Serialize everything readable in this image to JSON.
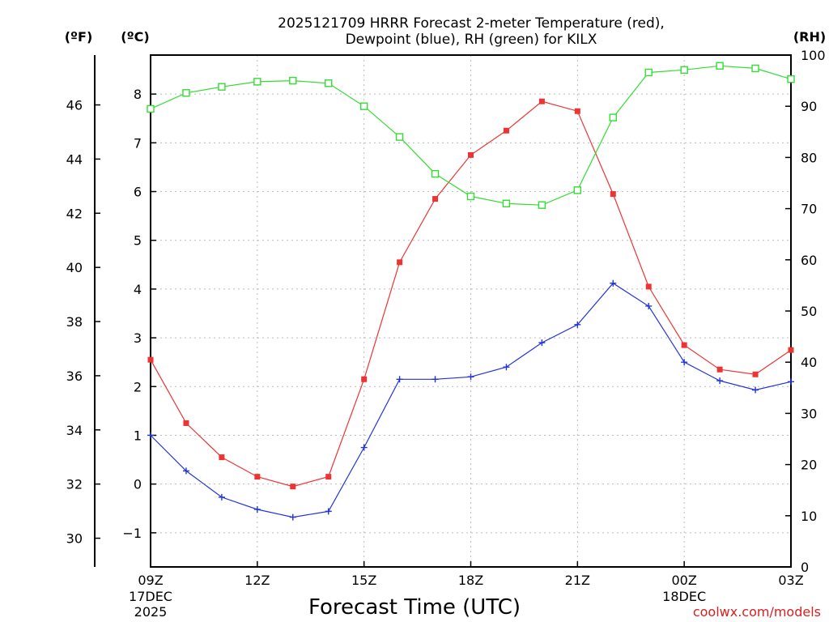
{
  "chart_data": {
    "type": "line",
    "title_line1": "2025121709 HRRR Forecast 2-meter Temperature (red),",
    "title_line2": "Dewpoint (blue), RH (green) for KILX",
    "xlabel": "Forecast Time (UTC)",
    "credit": "coolwx.com/models",
    "left_axis_f": {
      "unit_label": "(ºF)",
      "ticks": [
        30,
        32,
        34,
        36,
        38,
        40,
        42,
        44,
        46
      ]
    },
    "left_axis_c": {
      "unit_label": "(ºC)",
      "range": [
        -1.7,
        8.8
      ],
      "ticks": [
        -1,
        0,
        1,
        2,
        3,
        4,
        5,
        6,
        7,
        8
      ]
    },
    "right_axis_rh": {
      "unit_label": "(RH)",
      "range": [
        0,
        100
      ],
      "ticks": [
        0,
        10,
        20,
        30,
        40,
        50,
        60,
        70,
        80,
        90,
        100
      ]
    },
    "x_hours": [
      0,
      1,
      2,
      3,
      4,
      5,
      6,
      7,
      8,
      9,
      10,
      11,
      12,
      13,
      14,
      15,
      16,
      17,
      18
    ],
    "x_ticks": [
      {
        "hour": 0,
        "label": "09Z",
        "sub1": "17DEC",
        "sub2": "2025"
      },
      {
        "hour": 3,
        "label": "12Z",
        "sub1": "",
        "sub2": ""
      },
      {
        "hour": 6,
        "label": "15Z",
        "sub1": "",
        "sub2": ""
      },
      {
        "hour": 9,
        "label": "18Z",
        "sub1": "",
        "sub2": ""
      },
      {
        "hour": 12,
        "label": "21Z",
        "sub1": "",
        "sub2": ""
      },
      {
        "hour": 15,
        "label": "00Z",
        "sub1": "18DEC",
        "sub2": ""
      },
      {
        "hour": 18,
        "label": "03Z",
        "sub1": "",
        "sub2": ""
      }
    ],
    "series": [
      {
        "name": "Temperature",
        "axis": "celsius",
        "color": "#ee3333",
        "marker": "filled-square",
        "values": [
          2.55,
          1.25,
          0.55,
          0.15,
          -0.05,
          0.15,
          2.15,
          4.55,
          5.85,
          6.75,
          7.25,
          7.85,
          7.65,
          5.95,
          4.05,
          2.85,
          2.35,
          2.25,
          2.75
        ]
      },
      {
        "name": "Dewpoint",
        "axis": "celsius",
        "color": "#2233dd",
        "marker": "plus",
        "values": [
          1.0,
          0.27,
          -0.27,
          -0.52,
          -0.68,
          -0.56,
          0.75,
          2.15,
          2.15,
          2.2,
          2.4,
          2.9,
          3.27,
          4.12,
          3.65,
          2.5,
          2.12,
          1.93,
          2.1
        ]
      },
      {
        "name": "RH",
        "axis": "rh",
        "color": "#33dd33",
        "marker": "open-square",
        "values": [
          89.5,
          92.6,
          93.8,
          94.8,
          95.0,
          94.5,
          90.0,
          84.0,
          76.8,
          72.4,
          71.0,
          70.7,
          73.6,
          87.8,
          96.6,
          97.1,
          97.9,
          97.4,
          95.3
        ]
      }
    ]
  }
}
